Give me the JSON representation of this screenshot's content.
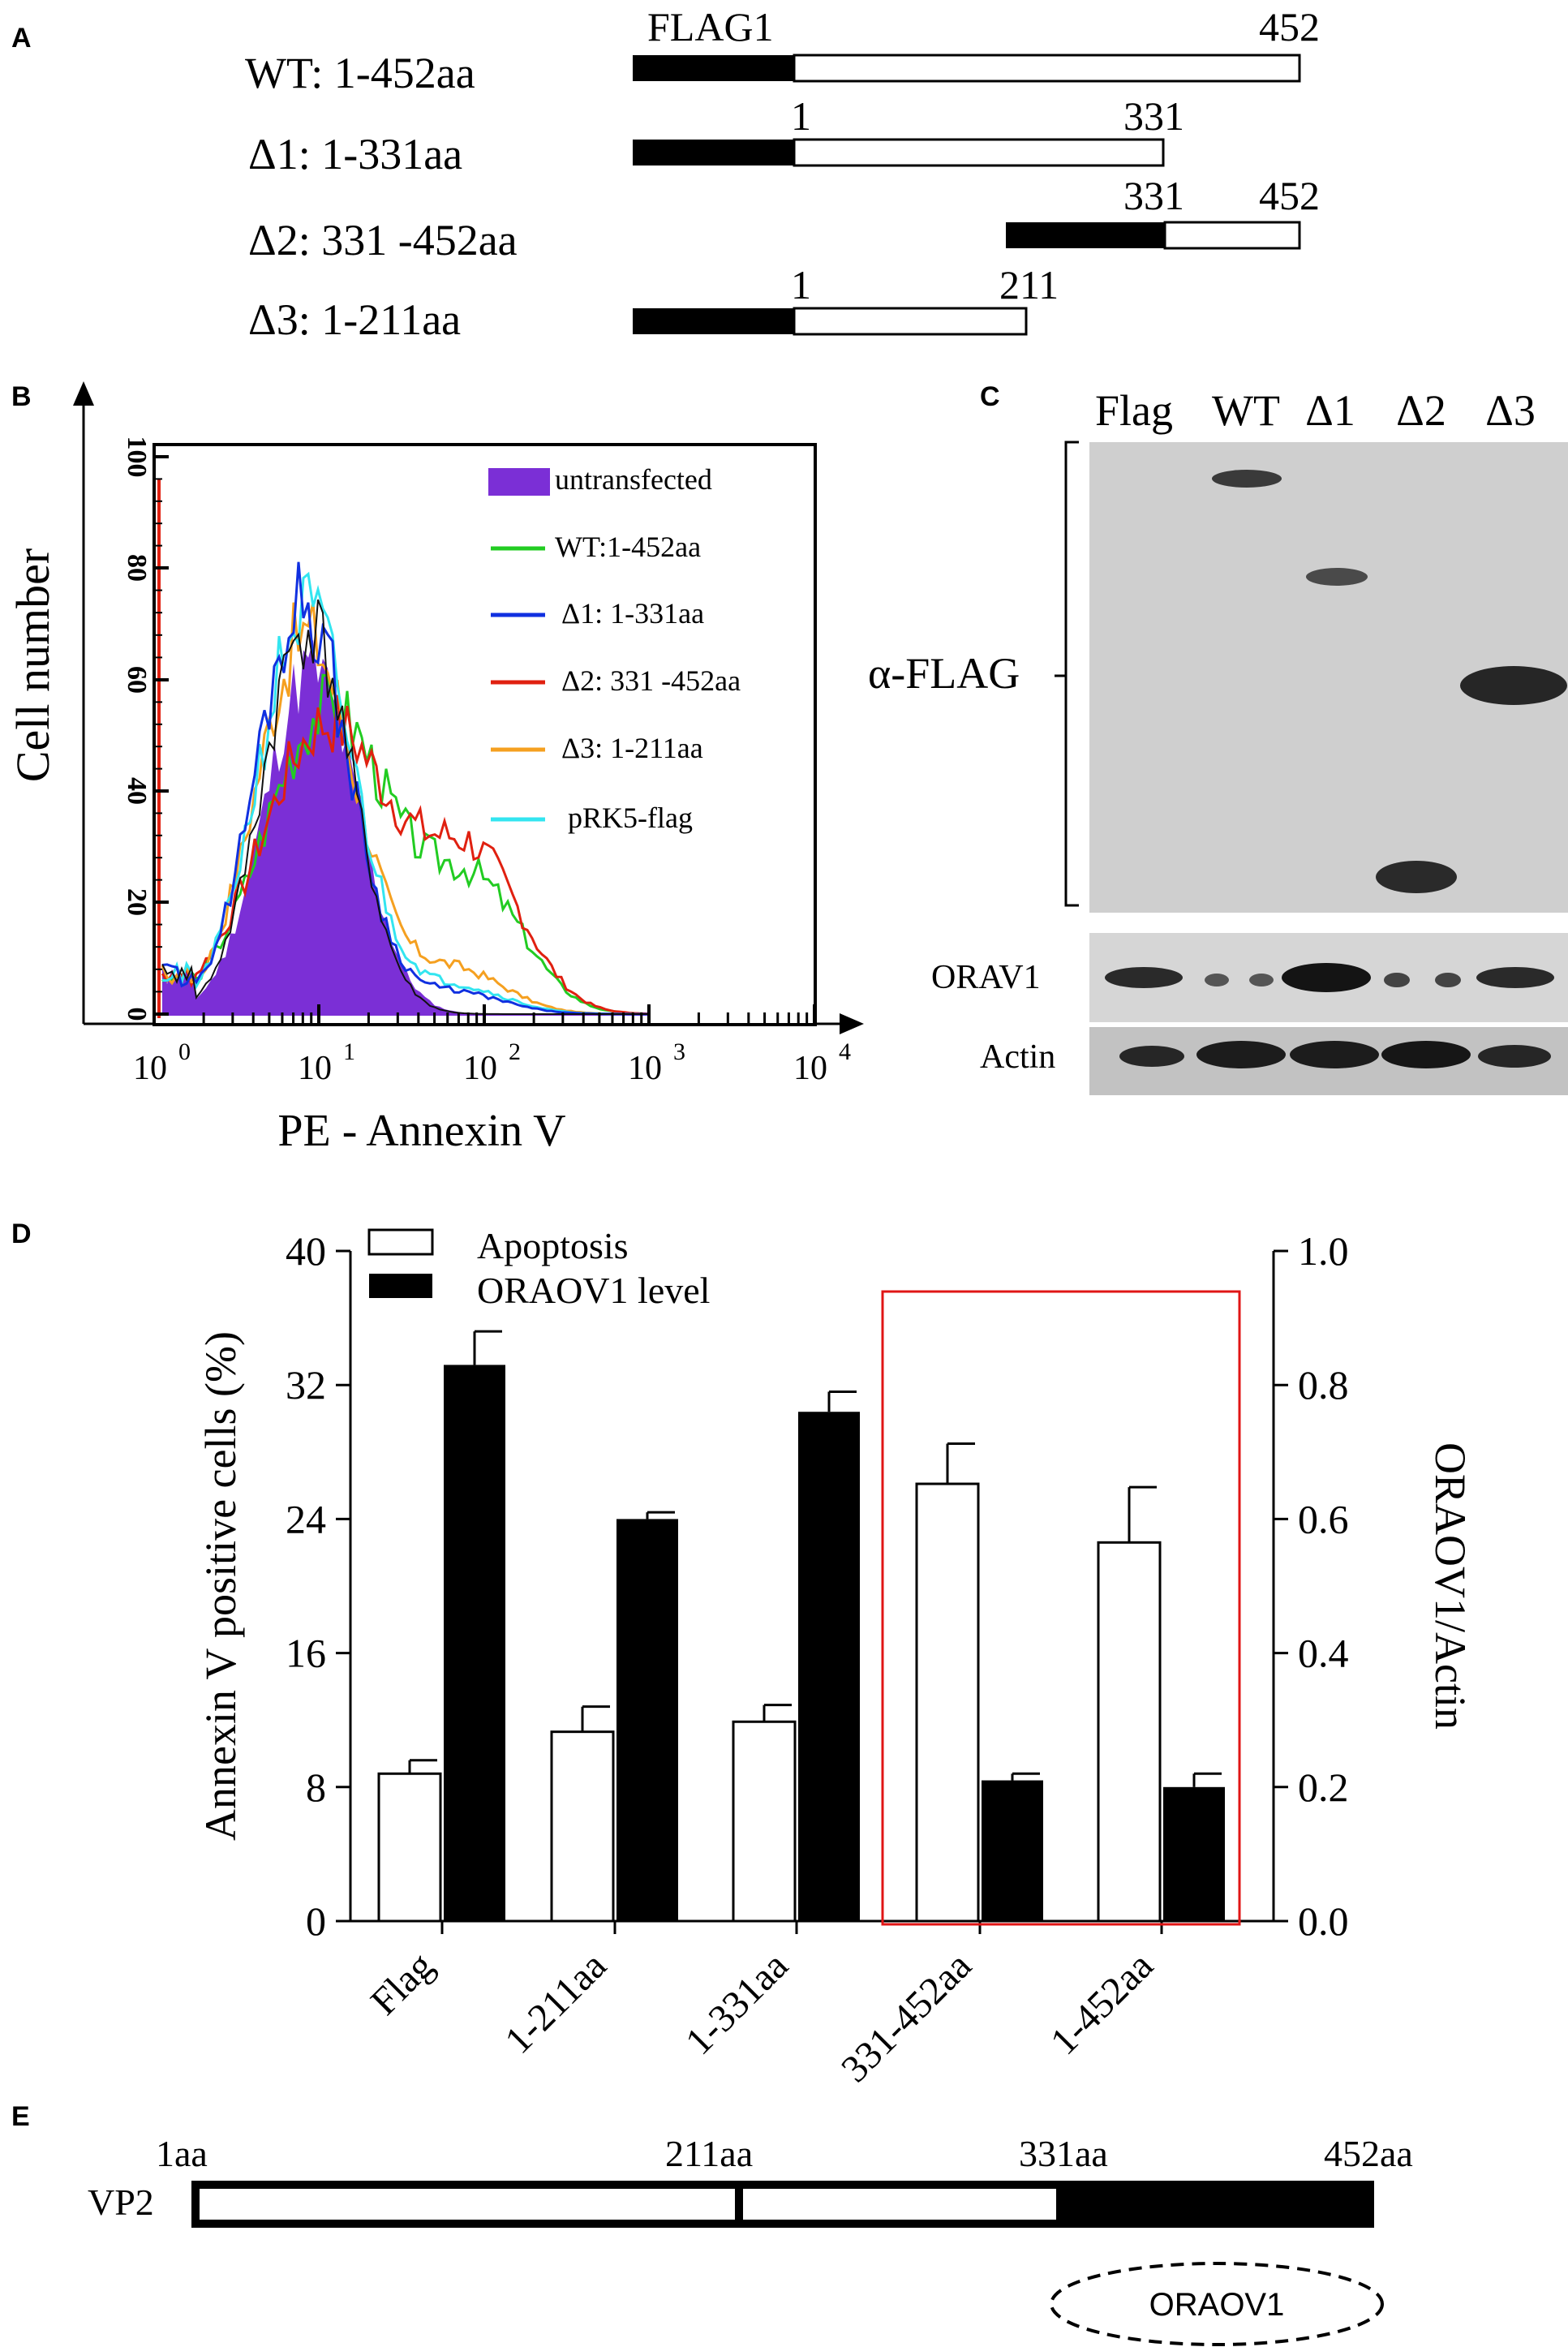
{
  "panel_a": {
    "letter": "A",
    "constructs": [
      {
        "label": "WT: 1-452aa",
        "left_num": "FLAG1",
        "right_num": "452"
      },
      {
        "label": "Δ1: 1-331aa",
        "left_num": "1",
        "right_num": "331"
      },
      {
        "label": "Δ2: 331 -452aa",
        "left_num": "331",
        "right_num": "452"
      },
      {
        "label": "Δ3: 1-211aa",
        "left_num": "1",
        "right_num": "211"
      }
    ]
  },
  "panel_b": {
    "letter": "B",
    "ylabel": "Cell number",
    "xlabel": "PE - Annexin V",
    "y_ticks": [
      "0",
      "20",
      "40",
      "60",
      "80",
      "100"
    ],
    "x_ticks": [
      {
        "base": "10",
        "exp": "0"
      },
      {
        "base": "10",
        "exp": "1"
      },
      {
        "base": "10",
        "exp": "2"
      },
      {
        "base": "10",
        "exp": "3"
      },
      {
        "base": "10",
        "exp": "4"
      }
    ],
    "legend": [
      {
        "label": "untransfected",
        "color": "#7b2fd6",
        "style": "fill"
      },
      {
        "label": "WT:1-452aa",
        "color": "#22cc22",
        "style": "line"
      },
      {
        "label": "Δ1: 1-331aa",
        "color": "#1030e0",
        "style": "line"
      },
      {
        "label": "Δ2: 331 -452aa",
        "color": "#e02010",
        "style": "line"
      },
      {
        "label": "Δ3: 1-211aa",
        "color": "#f5a020",
        "style": "line"
      },
      {
        "label": "pRK5-flag",
        "color": "#33e5f0",
        "style": "line"
      }
    ]
  },
  "panel_c": {
    "letter": "C",
    "lanes": [
      "Flag",
      "WT",
      "Δ1",
      "Δ2",
      "Δ3"
    ],
    "blot_labels": {
      "flag": "α-FLAG",
      "orav1": "ORAV1",
      "actin": "Actin"
    }
  },
  "panel_d": {
    "letter": "D",
    "legend": {
      "apoptosis": "Apoptosis",
      "oraov1": "ORAOV1 level"
    }
  },
  "panel_e": {
    "letter": "E",
    "protein": "VP2",
    "positions": [
      "1aa",
      "211aa",
      "331aa",
      "452aa"
    ],
    "binding": "ORAOV1"
  },
  "chart_data": {
    "type": "bar",
    "categories": [
      "Flag",
      "1-211aa",
      "1-331aa",
      "331-452aa",
      "1-452aa"
    ],
    "series": [
      {
        "name": "Apoptosis",
        "axis": "left",
        "values": [
          8.8,
          11.3,
          11.9,
          26.1,
          22.6
        ],
        "errors": [
          0.8,
          1.5,
          1.0,
          2.4,
          3.3
        ]
      },
      {
        "name": "ORAOV1 level",
        "axis": "right",
        "values": [
          0.83,
          0.6,
          0.76,
          0.21,
          0.2
        ],
        "errors": [
          0.05,
          0.01,
          0.03,
          0.01,
          0.02
        ]
      }
    ],
    "ylabel": "Annexin V positive cells (%)",
    "y2label": "ORAOV1/Actin",
    "ylim": [
      0,
      40
    ],
    "y2lim": [
      0.0,
      1.0
    ],
    "y_ticks": [
      "0",
      "8",
      "16",
      "24",
      "32",
      "40"
    ],
    "y2_ticks": [
      "0.0",
      "0.2",
      "0.4",
      "0.6",
      "0.8",
      "1.0"
    ],
    "highlight": [
      "331-452aa",
      "1-452aa"
    ]
  }
}
